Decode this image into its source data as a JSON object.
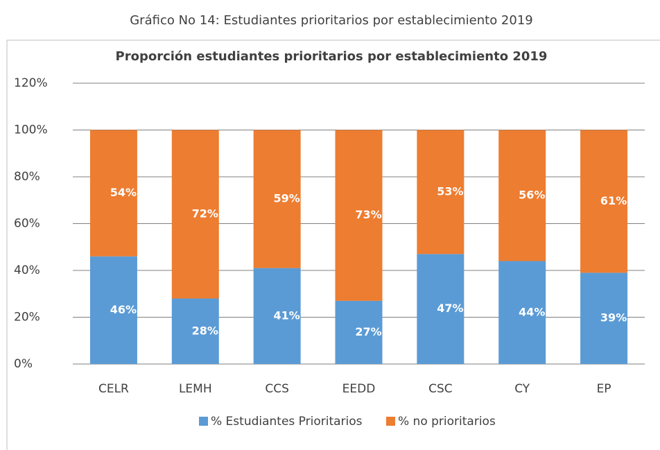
{
  "caption": "Gráfico No 14: Estudiantes prioritarios por establecimiento 2019",
  "chart_data": {
    "type": "stacked_bar",
    "title": "Proporción estudiantes prioritarios por establecimiento 2019",
    "categories": [
      "CELR",
      "LEMH",
      "CCS",
      "EEDD",
      "CSC",
      "CY",
      "EP"
    ],
    "series": [
      {
        "name": "% Estudiantes Prioritarios",
        "color": "#5b9bd5",
        "values": [
          46,
          28,
          41,
          27,
          47,
          44,
          39
        ],
        "value_labels": [
          "46%",
          "28%",
          "41%",
          "27%",
          "47%",
          "44%",
          "39%"
        ]
      },
      {
        "name": "% no prioritarios",
        "color": "#ed7d31",
        "values": [
          54,
          72,
          59,
          73,
          53,
          56,
          61
        ],
        "value_labels": [
          "54%",
          "72%",
          "59%",
          "73%",
          "53%",
          "56%",
          "61%"
        ]
      }
    ],
    "ylim": [
      0,
      120
    ],
    "yticks": [
      {
        "value": 0,
        "label": "0%"
      },
      {
        "value": 20,
        "label": "20%"
      },
      {
        "value": 40,
        "label": "40%"
      },
      {
        "value": 60,
        "label": "60%"
      },
      {
        "value": 80,
        "label": "80%"
      },
      {
        "value": 100,
        "label": "100%"
      },
      {
        "value": 120,
        "label": "120%"
      }
    ],
    "grid": true,
    "legend": "bottom"
  }
}
